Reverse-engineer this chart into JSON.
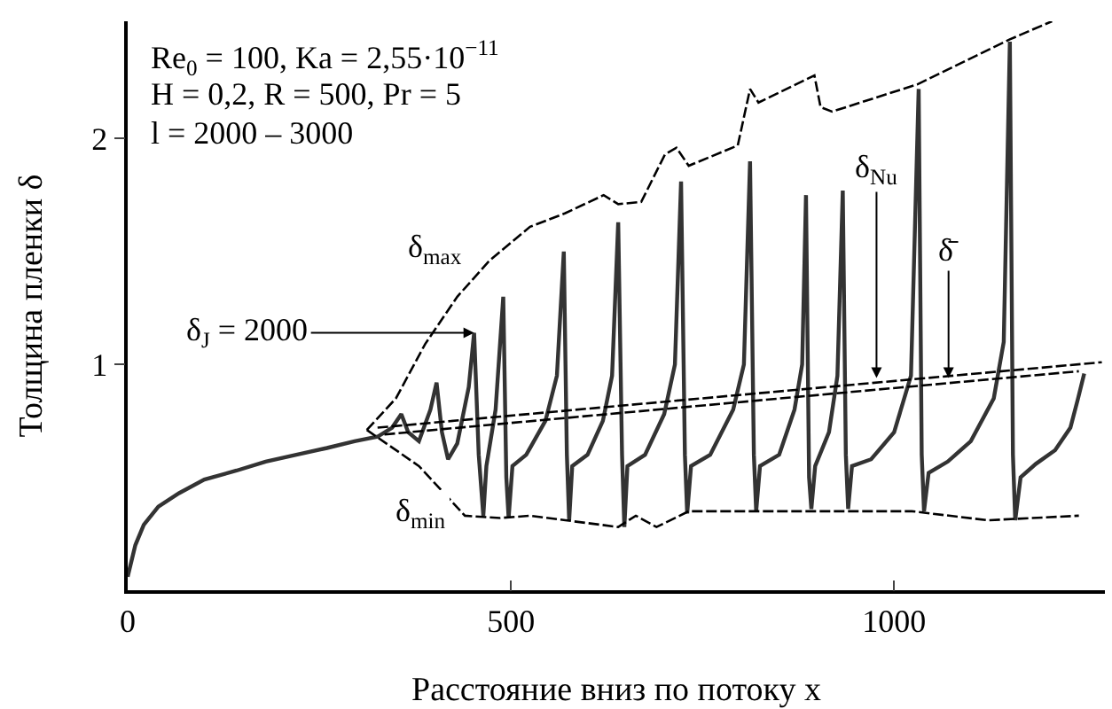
{
  "chart_data": {
    "type": "line",
    "xlabel": "Расстояние вниз по потоку x",
    "ylabel": "Толщина пленки δ",
    "xlim": [
      0,
      1275
    ],
    "ylim": [
      0,
      2.52
    ],
    "xticks": [
      0,
      500,
      1000
    ],
    "yticks": [
      1,
      2
    ],
    "grid": false,
    "marker": "none",
    "series": [
      {
        "color": "#333333",
        "line_style": "solid",
        "x": [
          0,
          10,
          21,
          40,
          67,
          100,
          142,
          180,
          220,
          260,
          296,
          326,
          345,
          357,
          366,
          380,
          395,
          403,
          410,
          418,
          430,
          445,
          452,
          458,
          464,
          468,
          480,
          490,
          494,
          497,
          502,
          520,
          545,
          560,
          569,
          573,
          576,
          580,
          600,
          620,
          632,
          640,
          645,
          648,
          652,
          675,
          700,
          714,
          722,
          727,
          730,
          735,
          760,
          790,
          804,
          812,
          817,
          820,
          825,
          850,
          870,
          880,
          885,
          889,
          892,
          897,
          915,
          926,
          933,
          937,
          940,
          945,
          970,
          1000,
          1022,
          1032,
          1036,
          1039,
          1045,
          1070,
          1100,
          1130,
          1143,
          1151,
          1155,
          1158,
          1165,
          1185,
          1210,
          1230,
          1240,
          1248
        ],
        "values": [
          0.06,
          0.2,
          0.29,
          0.37,
          0.43,
          0.49,
          0.53,
          0.57,
          0.6,
          0.63,
          0.66,
          0.68,
          0.72,
          0.78,
          0.7,
          0.66,
          0.8,
          0.92,
          0.7,
          0.58,
          0.65,
          0.9,
          1.14,
          0.6,
          0.33,
          0.55,
          0.8,
          1.3,
          0.5,
          0.32,
          0.55,
          0.6,
          0.75,
          0.95,
          1.5,
          0.6,
          0.31,
          0.55,
          0.6,
          0.75,
          0.95,
          1.63,
          0.6,
          0.28,
          0.55,
          0.6,
          0.78,
          1.0,
          1.81,
          0.6,
          0.34,
          0.55,
          0.6,
          0.8,
          1.0,
          1.9,
          0.6,
          0.35,
          0.55,
          0.6,
          0.8,
          1.0,
          1.75,
          0.5,
          0.36,
          0.55,
          0.7,
          0.95,
          1.77,
          0.6,
          0.36,
          0.55,
          0.58,
          0.7,
          0.95,
          2.22,
          0.6,
          0.35,
          0.52,
          0.57,
          0.66,
          0.85,
          1.1,
          2.43,
          0.6,
          0.31,
          0.5,
          0.56,
          0.62,
          0.72,
          0.85,
          0.96
        ]
      },
      {
        "color": "#000000",
        "line_style": "dashed",
        "x": [
          312,
          350,
          388,
          430,
          472,
          525,
          571,
          621,
          640,
          670,
          701,
          716,
          732,
          796,
          812,
          823,
          896,
          904,
          919,
          1030,
          1151,
          1206
        ],
        "values": [
          0.71,
          0.85,
          1.09,
          1.3,
          1.46,
          1.61,
          1.67,
          1.75,
          1.71,
          1.72,
          1.93,
          1.96,
          1.88,
          1.97,
          2.22,
          2.16,
          2.28,
          2.14,
          2.12,
          2.24,
          2.44,
          2.52
        ]
      },
      {
        "color": "#000000",
        "line_style": "dashed",
        "x": [
          312,
          380,
          440,
          486,
          525,
          571,
          640,
          663,
          690,
          732,
          816,
          1023,
          1122,
          1241
        ],
        "values": [
          0.71,
          0.55,
          0.33,
          0.32,
          0.33,
          0.31,
          0.28,
          0.33,
          0.28,
          0.35,
          0.35,
          0.35,
          0.31,
          0.33
        ]
      },
      {
        "color": "#000000",
        "line_style": "dashed",
        "x": [
          326,
          1271
        ],
        "values": [
          0.72,
          1.01
        ]
      },
      {
        "color": "#000000",
        "line_style": "dashed",
        "x": [
          335,
          1241
        ],
        "values": [
          0.69,
          0.97
        ]
      }
    ],
    "annotations": [
      "Re$_{0}$ = 100, Ka = 2,55·10$^{−11}$",
      "H = 0,2, R = 500, Pr = 5",
      "l = 2000 – 3000",
      {
        "text": "δ$_{J}$ = 2000",
        "x": 452,
        "y": 1.14
      },
      {
        "text": "δ$_{Nu}$",
        "x": 977,
        "y": 0.94
      },
      {
        "text": "δ̄",
        "x": 1071,
        "y": 0.94
      },
      "δ$_{max}$",
      "δ$_{min}$"
    ]
  }
}
